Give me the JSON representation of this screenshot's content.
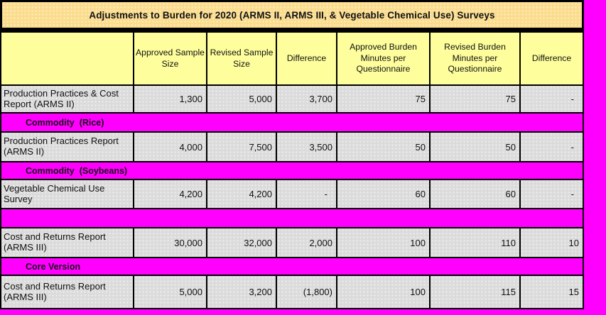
{
  "sheet": {
    "background_color": "#FF00FF"
  },
  "title": {
    "label": "Adjustments to Burden for 2020 (ARMS II, ARMS III, & Vegetable Chemical Use) Surveys",
    "fill_color": "#FBDC8C"
  },
  "table": {
    "colors": {
      "header_fill": "#FEFE9C",
      "cell_fill": "#DBDBDB",
      "separator_fill": "#FF00FF",
      "border": "#000000"
    },
    "columns": [
      {
        "label": ""
      },
      {
        "label": "Approved Sample Size"
      },
      {
        "label": "Revised Sample Size"
      },
      {
        "label": "Difference"
      },
      {
        "label": "Approved Burden Minutes per Questionnaire"
      },
      {
        "label": "Revised Burden Minutes per Questionnaire"
      },
      {
        "label": "Difference"
      }
    ],
    "rows": [
      {
        "type": "data",
        "label": "Production Practices & Cost Report (ARMS II)",
        "values": [
          "1,300",
          "5,000",
          "3,700",
          "75",
          "75",
          "-"
        ]
      },
      {
        "type": "separator",
        "label": "Commodity  (Rice)"
      },
      {
        "type": "data",
        "label": "Production Practices Report (ARMS II)",
        "values": [
          "4,000",
          "7,500",
          "3,500",
          "50",
          "50",
          "-"
        ]
      },
      {
        "type": "separator",
        "label": "Commodity  (Soybeans)"
      },
      {
        "type": "data",
        "label": "Vegetable Chemical Use Survey",
        "values": [
          "4,200",
          "4,200",
          "-",
          "60",
          "60",
          "-"
        ]
      },
      {
        "type": "separator",
        "label": ""
      },
      {
        "type": "data",
        "label": "Cost and Returns Report (ARMS III)",
        "values": [
          "30,000",
          "32,000",
          "2,000",
          "100",
          "110",
          "10"
        ]
      },
      {
        "type": "separator",
        "label": "Core Version"
      },
      {
        "type": "data",
        "label": "Cost and Returns Report (ARMS III)",
        "values": [
          "5,000",
          "3,200",
          "(1,800)",
          "100",
          "115",
          "15"
        ]
      }
    ]
  }
}
